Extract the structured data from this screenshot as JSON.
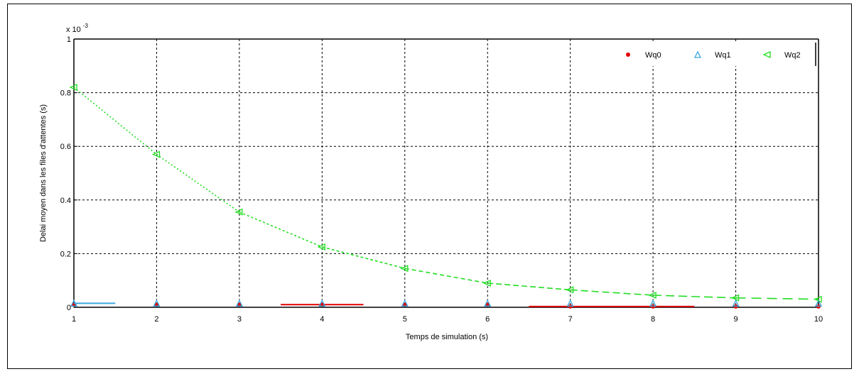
{
  "chart_data": {
    "type": "line",
    "xlabel": "Temps de simulation (s)",
    "ylabel": "Delai moyen dans les files d'attentes (s)",
    "y_exponent_label": "x 10",
    "y_exponent_power": "-3",
    "xlim": [
      1,
      10
    ],
    "ylim": [
      0,
      1
    ],
    "x_ticks": [
      1,
      2,
      3,
      4,
      5,
      6,
      7,
      8,
      9,
      10
    ],
    "x_tick_labels": [
      "1",
      "2",
      "3",
      "4",
      "5",
      "6",
      "7",
      "8",
      "9",
      "10"
    ],
    "y_ticks": [
      0,
      0.2,
      0.4,
      0.6,
      0.8,
      1
    ],
    "y_tick_labels": [
      "0",
      "0.2",
      "0.4",
      "0.6",
      "0.8",
      "1"
    ],
    "grid": true,
    "legend_position": "top-right",
    "series": [
      {
        "name": "Wq0",
        "color": "#e00000",
        "marker": "dot",
        "x": [
          1,
          2,
          3,
          4,
          5,
          6,
          7,
          8,
          9,
          10
        ],
        "y": [
          0.01,
          0.01,
          0.01,
          0.01,
          0.01,
          0.01,
          0.003,
          0.003,
          0.003,
          0.003
        ],
        "segments": [
          [
            3.5,
            4.5,
            0.01
          ],
          [
            6.5,
            8.5,
            0.003
          ]
        ]
      },
      {
        "name": "Wq1",
        "color": "#3aa8e0",
        "marker": "triangle",
        "x": [
          1,
          2,
          3,
          4,
          5,
          6,
          7,
          8,
          9,
          10
        ],
        "y": [
          0.015,
          0.015,
          0.015,
          0.015,
          0.015,
          0.015,
          0.015,
          0.015,
          0.015,
          0.015
        ],
        "segments": [
          [
            1,
            1.5,
            0.015
          ]
        ]
      },
      {
        "name": "Wq2",
        "color": "#22dd22",
        "marker": "triangle-left",
        "x": [
          1,
          2,
          3,
          4,
          5,
          6,
          7,
          8,
          9,
          10
        ],
        "y": [
          0.82,
          0.57,
          0.355,
          0.225,
          0.145,
          0.09,
          0.065,
          0.045,
          0.035,
          0.03
        ]
      }
    ]
  }
}
